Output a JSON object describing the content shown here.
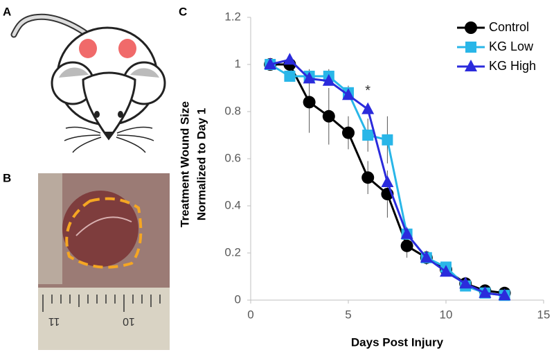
{
  "panels": {
    "a": "A",
    "b": "B"
  },
  "photo": {
    "ruler_labels": [
      "11",
      "10"
    ]
  },
  "chart_data": {
    "type": "line",
    "panel": "C",
    "x_label": "Days Post Injury",
    "y_label": [
      "Treatment Wound Size",
      "Normalized to Day 1"
    ],
    "annotation": "*",
    "x": [
      1,
      2,
      3,
      4,
      5,
      6,
      7,
      8,
      9,
      10,
      11,
      12,
      13
    ],
    "xlim": [
      0,
      15
    ],
    "xticks": [
      0,
      5,
      10,
      15
    ],
    "ylim": [
      0,
      1.2
    ],
    "yticks": [
      0,
      0.2,
      0.4,
      0.6,
      0.8,
      1,
      1.2
    ],
    "legend": "top-right",
    "series": [
      {
        "name": "Control",
        "color": "#000000",
        "marker": "circle",
        "values": [
          1.0,
          1.0,
          0.84,
          0.78,
          0.71,
          0.52,
          0.45,
          0.23,
          0.18,
          0.13,
          0.07,
          0.04,
          0.03
        ],
        "errors": [
          0.02,
          0.02,
          0.13,
          0.12,
          0.07,
          0.07,
          0.1,
          0.05,
          0.03,
          0.02,
          0.02,
          0.02,
          0.02
        ]
      },
      {
        "name": "KG Low",
        "color": "#29b6e8",
        "marker": "square",
        "values": [
          1.0,
          0.95,
          0.95,
          0.95,
          0.88,
          0.7,
          0.68,
          0.28,
          0.18,
          0.14,
          0.06,
          0.03,
          0.02
        ],
        "errors": [
          0.02,
          0.02,
          0.03,
          0.03,
          0.03,
          0.07,
          0.1,
          0.03,
          0.02,
          0.02,
          0.02,
          0.02,
          0.02
        ]
      },
      {
        "name": "KG High",
        "color": "#2b2bdc",
        "marker": "triangle",
        "values": [
          1.0,
          1.02,
          0.94,
          0.93,
          0.87,
          0.81,
          0.5,
          0.28,
          0.18,
          0.12,
          0.07,
          0.03,
          0.02
        ]
      }
    ]
  }
}
